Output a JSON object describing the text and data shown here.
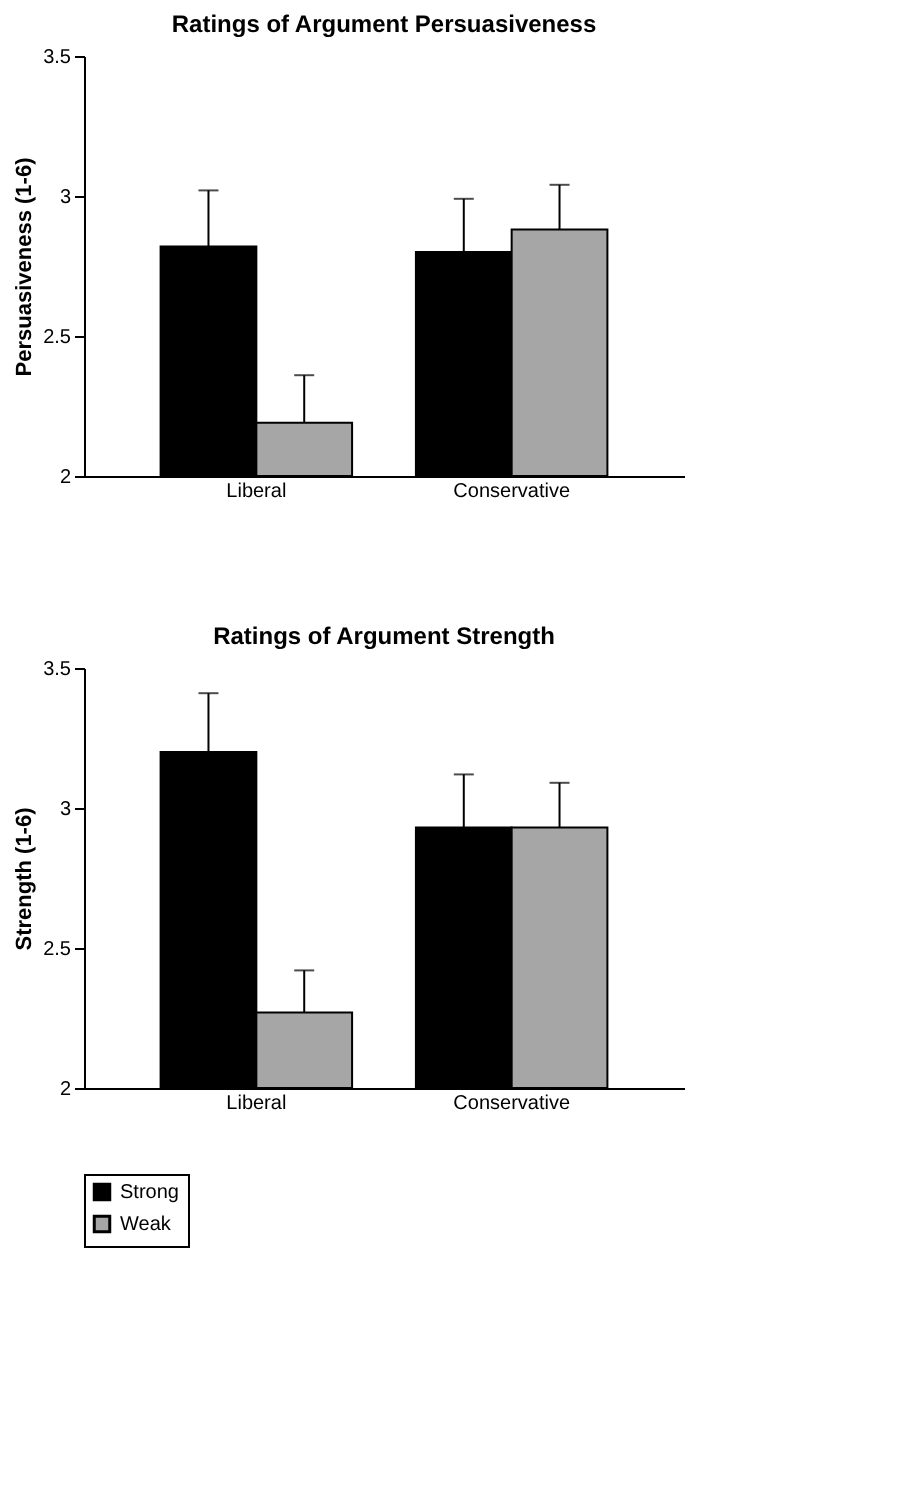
{
  "chart_data": [
    {
      "type": "bar",
      "title": "Ratings of Argument Persuasiveness",
      "ylabel": "Persuasiveness (1-6)",
      "categories": [
        "Liberal",
        "Conservative"
      ],
      "series": [
        {
          "name": "Strong",
          "color": "#000000",
          "values": [
            2.82,
            2.8
          ],
          "errors": [
            [
              2.82,
              3.02
            ],
            [
              2.8,
              2.99
            ]
          ]
        },
        {
          "name": "Weak",
          "color": "#a6a6a6",
          "values": [
            2.19,
            2.88
          ],
          "errors": [
            [
              2.19,
              2.36
            ],
            [
              2.88,
              3.04
            ]
          ]
        }
      ],
      "ylim": [
        2,
        3.5
      ],
      "yticks": [
        2,
        2.5,
        3,
        3.5
      ],
      "grid": false,
      "legend": "bottom"
    },
    {
      "type": "bar",
      "title": "Ratings of Argument Strength",
      "ylabel": "Strength (1-6)",
      "categories": [
        "Liberal",
        "Conservative"
      ],
      "series": [
        {
          "name": "Strong",
          "color": "#000000",
          "values": [
            3.2,
            2.93
          ],
          "errors": [
            [
              3.2,
              3.41
            ],
            [
              2.93,
              3.12
            ]
          ]
        },
        {
          "name": "Weak",
          "color": "#a6a6a6",
          "values": [
            2.27,
            2.93
          ],
          "errors": [
            [
              2.27,
              2.42
            ],
            [
              2.93,
              3.09
            ]
          ]
        }
      ],
      "ylim": [
        2,
        3.5
      ],
      "yticks": [
        2,
        2.5,
        3,
        3.5
      ],
      "grid": false,
      "legend": "bottom"
    }
  ]
}
